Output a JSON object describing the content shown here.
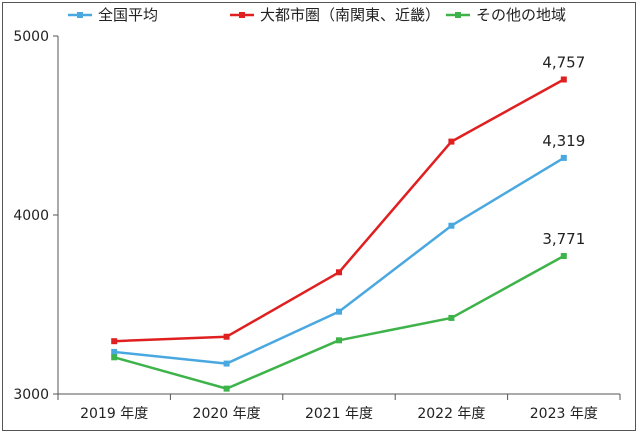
{
  "chart_data": {
    "type": "line",
    "categories": [
      "2019 年度",
      "2020 年度",
      "2021 年度",
      "2022 年度",
      "2023 年度"
    ],
    "series": [
      {
        "name": "全国平均",
        "color": "#4aa8e0",
        "values": [
          3235,
          3170,
          3460,
          3940,
          4319
        ],
        "labels": {
          "4": "4,319"
        }
      },
      {
        "name": "大都市圏（南関東、近畿）",
        "color": "#e02020",
        "values": [
          3295,
          3320,
          3680,
          4410,
          4757
        ],
        "labels": {
          "4": "4,757"
        }
      },
      {
        "name": "その他の地域",
        "color": "#3db34a",
        "values": [
          3205,
          3030,
          3300,
          3425,
          3771
        ],
        "labels": {
          "4": "3,771"
        }
      }
    ],
    "yticks": [
      3000,
      4000,
      5000
    ],
    "ytick_labels": [
      "3000",
      "4000",
      "5000"
    ],
    "ylim": [
      3000,
      5000
    ],
    "grid": false,
    "legend_position": "top"
  }
}
